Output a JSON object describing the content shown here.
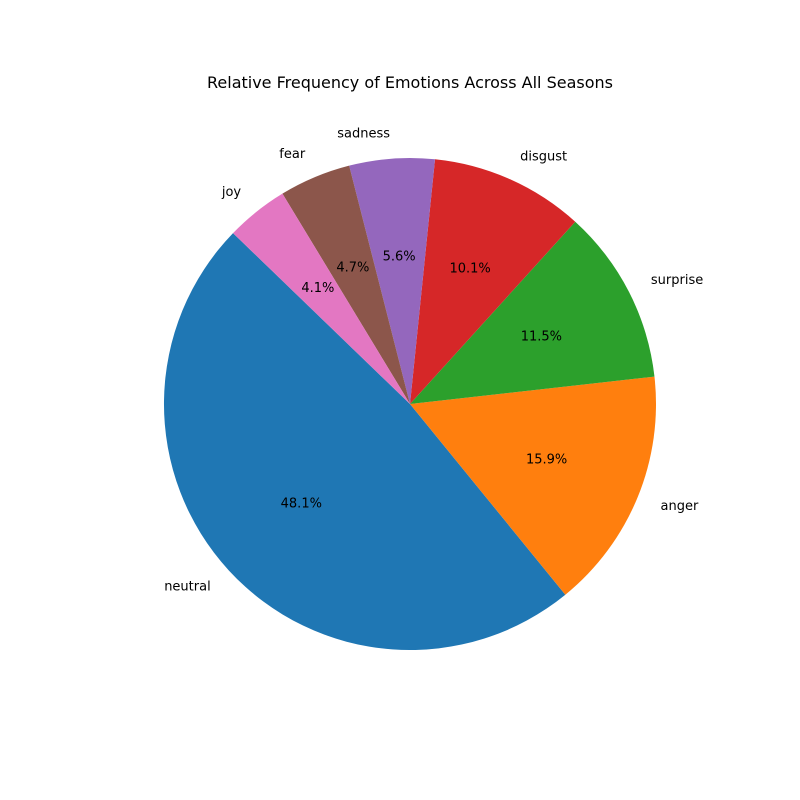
{
  "chart_data": {
    "type": "pie",
    "title": "Relative Frequency of Emotions Across All Seasons",
    "start_angle_deg": 136,
    "direction": "counterclockwise",
    "slices": [
      {
        "label": "neutral",
        "value": 48.1,
        "pct_text": "48.1%",
        "color": "#1f77b4"
      },
      {
        "label": "anger",
        "value": 15.9,
        "pct_text": "15.9%",
        "color": "#ff7f0e"
      },
      {
        "label": "surprise",
        "value": 11.5,
        "pct_text": "11.5%",
        "color": "#2ca02c"
      },
      {
        "label": "disgust",
        "value": 10.1,
        "pct_text": "10.1%",
        "color": "#d62728"
      },
      {
        "label": "sadness",
        "value": 5.6,
        "pct_text": "5.6%",
        "color": "#9467bd"
      },
      {
        "label": "fear",
        "value": 4.7,
        "pct_text": "4.7%",
        "color": "#8c564b"
      },
      {
        "label": "joy",
        "value": 4.1,
        "pct_text": "4.1%",
        "color": "#e377c2"
      }
    ]
  }
}
